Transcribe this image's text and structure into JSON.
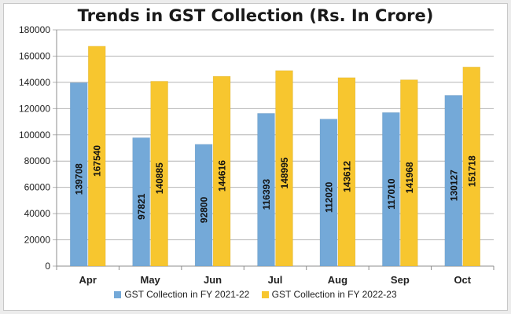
{
  "chart_data": {
    "type": "bar",
    "title": "Trends in GST Collection (Rs. In Crore)",
    "categories": [
      "Apr",
      "May",
      "Jun",
      "Jul",
      "Aug",
      "Sep",
      "Oct"
    ],
    "series": [
      {
        "name": "GST Collection in FY 2021-22",
        "color": "#74a9d8",
        "values": [
          139708,
          97821,
          92800,
          116393,
          112020,
          117010,
          130127
        ]
      },
      {
        "name": "GST Collection in FY 2022-23",
        "color": "#f7c62f",
        "values": [
          167540,
          140885,
          144616,
          148995,
          143612,
          141968,
          151718
        ]
      }
    ],
    "ylim": [
      0,
      180000
    ],
    "yticks": [
      "0",
      "20000",
      "40000",
      "60000",
      "80000",
      "100000",
      "120000",
      "140000",
      "160000",
      "180000"
    ],
    "grid": true,
    "legend_position": "bottom"
  }
}
